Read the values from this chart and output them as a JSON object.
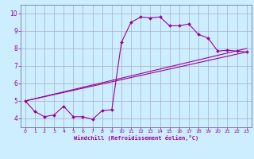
{
  "bg_color": "#cceeff",
  "line_color": "#990099",
  "grid_color": "#aaaacc",
  "spine_color": "#7777aa",
  "xlim": [
    -0.5,
    23.5
  ],
  "ylim": [
    3.5,
    10.5
  ],
  "xticks": [
    0,
    1,
    2,
    3,
    4,
    5,
    6,
    7,
    8,
    9,
    10,
    11,
    12,
    13,
    14,
    15,
    16,
    17,
    18,
    19,
    20,
    21,
    22,
    23
  ],
  "yticks": [
    4,
    5,
    6,
    7,
    8,
    9,
    10
  ],
  "xlabel": "Windchill (Refroidissement éolien,°C)",
  "line1_x": [
    0,
    1,
    2,
    3,
    4,
    5,
    6,
    7,
    8,
    9,
    10,
    11,
    12,
    13,
    14,
    15,
    16,
    17,
    18,
    19,
    20,
    21,
    22,
    23
  ],
  "line1_y": [
    5.0,
    4.4,
    4.1,
    4.2,
    4.7,
    4.1,
    4.1,
    3.95,
    4.45,
    4.5,
    8.35,
    9.5,
    9.8,
    9.75,
    9.8,
    9.3,
    9.3,
    9.4,
    8.8,
    8.6,
    7.85,
    7.9,
    7.85,
    7.8
  ],
  "line2_x": [
    0,
    23
  ],
  "line2_y": [
    5.0,
    8.0
  ],
  "line3_x": [
    0,
    23
  ],
  "line3_y": [
    5.0,
    7.8
  ]
}
